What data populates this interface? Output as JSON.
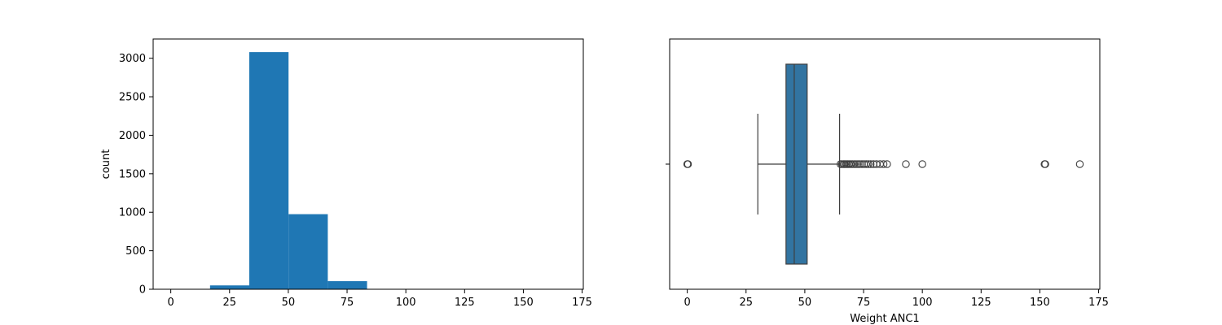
{
  "chart_data": [
    {
      "type": "bar",
      "subtype": "histogram",
      "xlabel": "",
      "ylabel": "count",
      "xlim": [
        -7.5,
        175.5
      ],
      "ylim": [
        0,
        3250
      ],
      "x_ticks": [
        0,
        25,
        50,
        75,
        100,
        125,
        150,
        175
      ],
      "y_ticks": [
        0,
        500,
        1000,
        1500,
        2000,
        2500,
        3000
      ],
      "bar_color": "#1f77b4",
      "bins": [
        {
          "x0": 0.0,
          "x1": 16.7,
          "count": 3
        },
        {
          "x0": 16.7,
          "x1": 33.4,
          "count": 50
        },
        {
          "x0": 33.4,
          "x1": 50.1,
          "count": 3080
        },
        {
          "x0": 50.1,
          "x1": 66.8,
          "count": 975
        },
        {
          "x0": 66.8,
          "x1": 83.5,
          "count": 105
        },
        {
          "x0": 83.5,
          "x1": 100.2,
          "count": 3
        },
        {
          "x0": 100.2,
          "x1": 116.9,
          "count": 0
        },
        {
          "x0": 116.9,
          "x1": 133.6,
          "count": 0
        },
        {
          "x0": 133.6,
          "x1": 150.3,
          "count": 0
        },
        {
          "x0": 150.3,
          "x1": 167.0,
          "count": 3
        }
      ]
    },
    {
      "type": "box",
      "xlabel": "Weight ANC1",
      "ylabel": "",
      "xlim": [
        -7.5,
        175.5
      ],
      "x_ticks": [
        0,
        25,
        50,
        75,
        100,
        125,
        150,
        175
      ],
      "box_color": "#3274a1",
      "whisker_low": 30,
      "q1": 42,
      "median": 45.5,
      "q3": 51,
      "whisker_high": 64.8,
      "outliers": [
        0,
        0.3,
        65.2,
        65.8,
        66.5,
        67,
        67.6,
        68.2,
        68.8,
        69.5,
        70.2,
        71,
        71.8,
        72.6,
        73.4,
        74.3,
        75.2,
        76.1,
        77,
        78,
        79.2,
        80.5,
        82,
        83.5,
        85,
        93,
        100,
        152,
        152.3,
        167
      ]
    }
  ]
}
